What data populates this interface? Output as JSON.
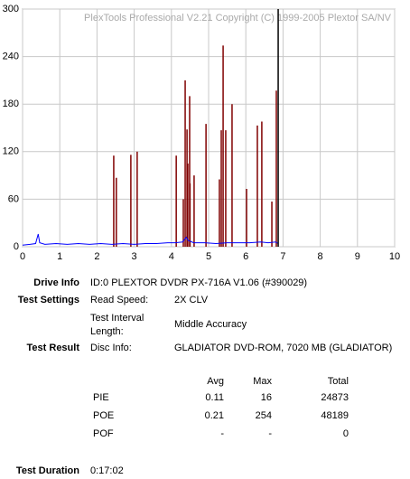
{
  "chart_data": {
    "type": "spikes",
    "watermark": "PlexTools Professional V2.21 Copyright (C) 1999-2005 Plextor SA/NV",
    "xlim": [
      0,
      10
    ],
    "xticks": [
      0,
      1,
      2,
      3,
      4,
      5,
      6,
      7,
      8,
      9,
      10
    ],
    "ylim": [
      0,
      300
    ],
    "yticks": [
      0,
      60,
      120,
      180,
      240,
      300
    ],
    "grid": true,
    "end_line": 6.87,
    "series": [
      {
        "color": "#800000",
        "style": "spikes",
        "x": [
          2.45,
          2.52,
          2.91,
          3.08,
          4.13,
          4.32,
          4.37,
          4.42,
          4.44,
          4.49,
          4.5,
          4.61,
          4.93,
          5.29,
          5.34,
          5.39,
          5.46,
          5.63,
          6.02,
          6.31,
          6.43,
          6.7,
          6.82
        ],
        "values": [
          115,
          87,
          116,
          120,
          115,
          60,
          210,
          148,
          105,
          190,
          80,
          90,
          155,
          85,
          147,
          254,
          147,
          180,
          73,
          153,
          158,
          57,
          197
        ]
      },
      {
        "color": "#0000ff",
        "style": "line",
        "x": [
          0,
          0.2,
          0.35,
          0.42,
          0.46,
          0.6,
          0.9,
          1.2,
          1.5,
          1.8,
          2.1,
          2.4,
          2.7,
          3.0,
          3.3,
          3.6,
          3.9,
          4.1,
          4.3,
          4.4,
          4.45,
          4.6,
          4.9,
          5.2,
          5.5,
          5.8,
          6.1,
          6.4,
          6.6,
          6.8,
          6.87
        ],
        "values": [
          2,
          3,
          4,
          16,
          5,
          3,
          4,
          3,
          4,
          3,
          4,
          3,
          4,
          3,
          4,
          4,
          5,
          5,
          6,
          12,
          8,
          5,
          5,
          4,
          5,
          5,
          5,
          6,
          5,
          6,
          4
        ]
      }
    ]
  },
  "info": {
    "drive_label": "Drive Info",
    "drive_value": "ID:0 PLEXTOR DVDR PX-716A V1.06 (#390029)",
    "settings_label": "Test Settings",
    "read_speed_label": "Read Speed:",
    "read_speed_value": "2X CLV",
    "interval_label_1": "Test Interval",
    "interval_label_2": "Length:",
    "interval_value": "Middle Accuracy",
    "result_label": "Test Result",
    "disc_info_label": "Disc Info:",
    "disc_info_value": "GLADIATOR DVD-ROM, 7020 MB (GLADIATOR)",
    "table": {
      "header": [
        "Avg",
        "Max",
        "Total"
      ],
      "rows": [
        [
          "PIE",
          "0.11",
          "16",
          "24873"
        ],
        [
          "POE",
          "0.21",
          "254",
          "48189"
        ],
        [
          "POF",
          "-",
          "-",
          "0"
        ]
      ]
    },
    "duration_label": "Test Duration",
    "duration_value": "0:17:02"
  }
}
